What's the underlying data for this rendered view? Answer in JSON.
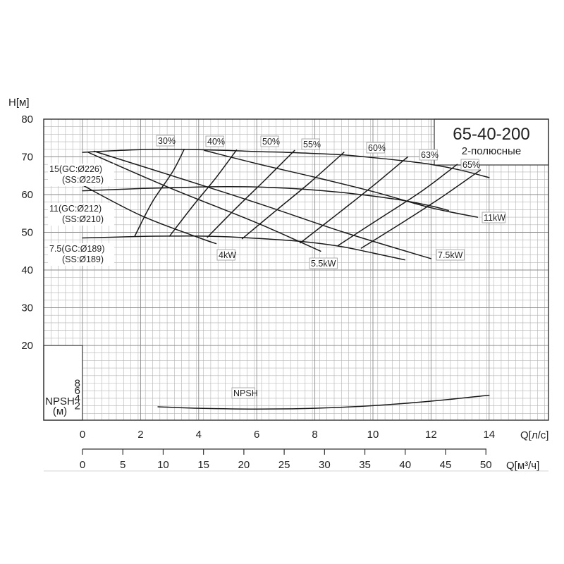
{
  "title": "65-40-200",
  "subtitle": "2-полюсные",
  "chart_data": {
    "type": "line",
    "xlabel": "Q[л/с]",
    "ylabel": "H[м]",
    "xlim": [
      -1.4,
      15
    ],
    "ylim": [
      20,
      80
    ],
    "x_ticks": [
      "0",
      "2",
      "4",
      "6",
      "8",
      "10",
      "12",
      "14"
    ],
    "y_ticks": [
      "20",
      "30",
      "40",
      "50",
      "60",
      "70",
      "80"
    ],
    "grid": true,
    "secondary_x": {
      "label": "Q[м³/ч]",
      "ticks": [
        "0",
        "5",
        "10",
        "15",
        "20",
        "25",
        "30",
        "35",
        "40",
        "45",
        "50"
      ]
    },
    "curves": [
      {
        "name": "15(GC:Ø226)\n(SS:Ø225)",
        "x": [
          0,
          1,
          2,
          3,
          4,
          5,
          6,
          7,
          8,
          9,
          10,
          11,
          12,
          13,
          14
        ],
        "y": [
          71.2,
          71.6,
          71.9,
          72.0,
          71.9,
          71.7,
          71.4,
          71.2,
          70.9,
          70.5,
          69.8,
          69.0,
          68.0,
          66.5,
          64.5
        ]
      },
      {
        "name": "11(GC:Ø212)\n(SS:Ø210)",
        "x": [
          0,
          1,
          2,
          3,
          4,
          5,
          6,
          7,
          8,
          9,
          10,
          11,
          12,
          12.6
        ],
        "y": [
          61.0,
          61.3,
          61.6,
          61.8,
          62.0,
          62.1,
          62.0,
          61.7,
          61.2,
          60.5,
          59.6,
          58.5,
          57.0,
          55.8
        ]
      },
      {
        "name": "7.5(GC:Ø189)\n(SS:Ø189)",
        "x": [
          0,
          1,
          2,
          3,
          4,
          5,
          6,
          7,
          8,
          9,
          10,
          11.1
        ],
        "y": [
          48.5,
          48.7,
          48.9,
          49.0,
          49.0,
          48.8,
          48.4,
          47.9,
          47.2,
          46.1,
          44.5,
          42.7
        ]
      }
    ],
    "power_curves": [
      {
        "label": "4kW",
        "x": [
          0,
          2,
          4,
          4.6
        ],
        "y": [
          62.5,
          54.5,
          48.6,
          47.0
        ]
      },
      {
        "label": "5.5kW",
        "x": [
          0.2,
          3,
          6,
          8.2
        ],
        "y": [
          71.2,
          61.8,
          52.5,
          45.0
        ]
      },
      {
        "label": "7.5kW",
        "x": [
          0.4,
          3,
          6,
          9,
          12
        ],
        "y": [
          71.5,
          65.2,
          57.8,
          50.0,
          43.0
        ]
      },
      {
        "label": "11kW",
        "x": [
          4.2,
          6,
          8,
          10,
          12,
          13.6
        ],
        "y": [
          71.7,
          68.2,
          64.6,
          60.8,
          56.5,
          54.0
        ]
      }
    ],
    "efficiency_curves": [
      {
        "label": "30%",
        "x": [
          1.8,
          2.4,
          3.1,
          3.5
        ],
        "y": [
          49.0,
          58.0,
          66.0,
          72.0
        ]
      },
      {
        "label": "40%",
        "x": [
          3.0,
          3.8,
          4.6,
          5.3
        ],
        "y": [
          49.0,
          57.0,
          64.5,
          71.8
        ]
      },
      {
        "label": "50%",
        "x": [
          4.3,
          5.3,
          6.3,
          7.3
        ],
        "y": [
          48.7,
          56.5,
          64.0,
          71.7
        ]
      },
      {
        "label": "55%",
        "x": [
          5.5,
          6.7,
          7.8,
          9.0
        ],
        "y": [
          48.3,
          56.0,
          63.0,
          71.2
        ]
      },
      {
        "label": "60%",
        "x": [
          7.5,
          8.8,
          10.0,
          11.2
        ],
        "y": [
          47.2,
          55.0,
          62.3,
          70.0
        ]
      },
      {
        "label": "63%",
        "x": [
          8.8,
          10.3,
          11.7,
          12.9
        ],
        "y": [
          46.5,
          54.0,
          61.0,
          68.0
        ]
      },
      {
        "label": "65%",
        "x": [
          9.6,
          11.1,
          12.4,
          13.7
        ],
        "y": [
          45.8,
          53.0,
          59.5,
          66.5
        ]
      }
    ],
    "npsh": {
      "label": "NPSH",
      "axis_label": "NPSH\n(м)",
      "ticks": [
        "2",
        "4",
        "6",
        "8"
      ],
      "x": [
        2.6,
        4,
        6,
        8,
        10,
        12,
        14
      ],
      "y": [
        1.7,
        1.3,
        1.1,
        1.3,
        2.0,
        3.2,
        4.8
      ]
    }
  }
}
